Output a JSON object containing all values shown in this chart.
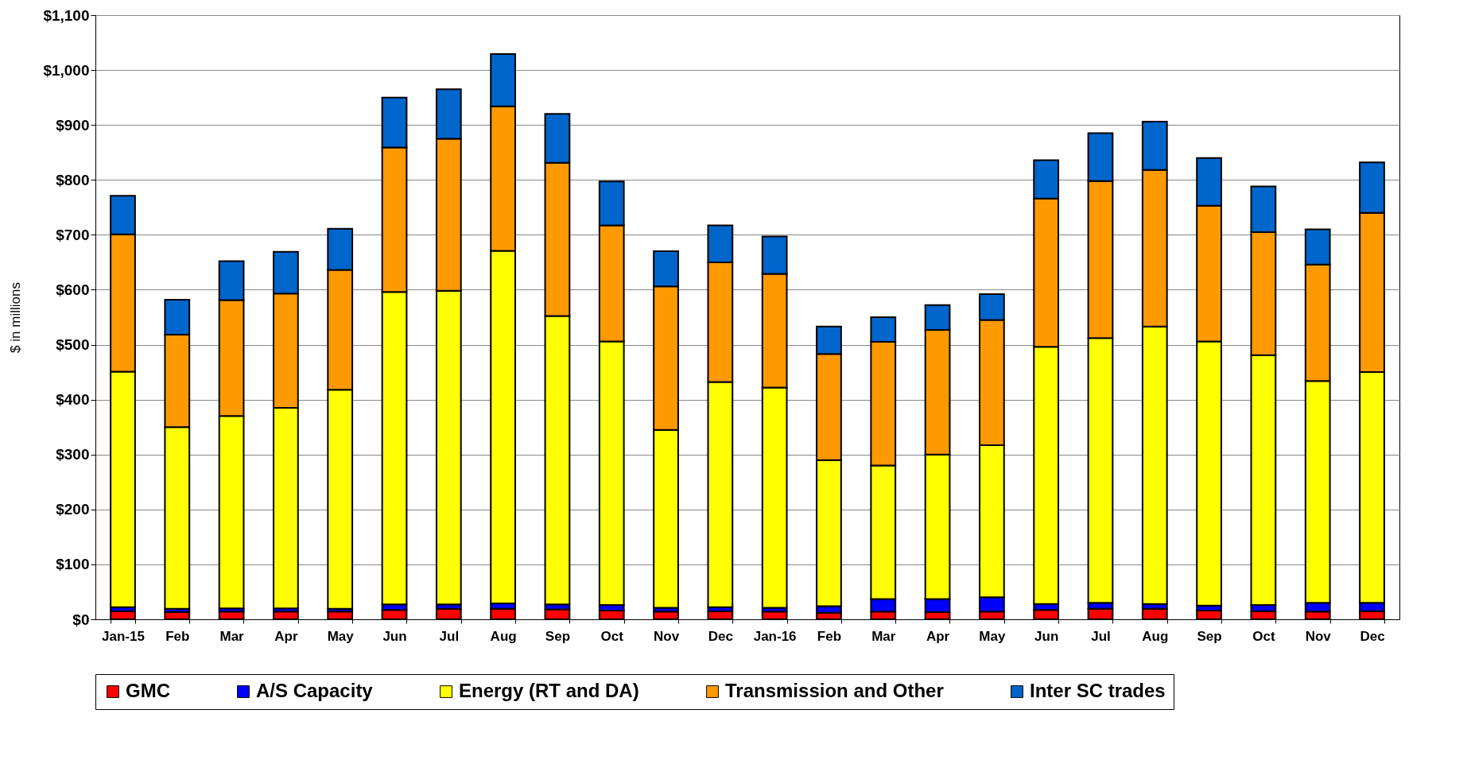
{
  "chart_data": {
    "type": "bar",
    "stacked": true,
    "ylabel": "$ in millions",
    "legend": "bottom",
    "grid": "y",
    "categories": [
      "Jan-15",
      "Feb",
      "Mar",
      "Apr",
      "May",
      "Jun",
      "Jul",
      "Aug",
      "Sep",
      "Oct",
      "Nov",
      "Dec",
      "Jan-16",
      "Feb",
      "Mar",
      "Apr",
      "May",
      "Jun",
      "Jul",
      "Aug",
      "Sep",
      "Oct",
      "Nov",
      "Dec"
    ],
    "ylim": [
      0,
      1100
    ],
    "yticks": [
      {
        "value": 0,
        "label": "$0"
      },
      {
        "value": 100,
        "label": "$100"
      },
      {
        "value": 200,
        "label": "$200"
      },
      {
        "value": 300,
        "label": "$300"
      },
      {
        "value": 400,
        "label": "$400"
      },
      {
        "value": 500,
        "label": "$500"
      },
      {
        "value": 600,
        "label": "$600"
      },
      {
        "value": 700,
        "label": "$700"
      },
      {
        "value": 800,
        "label": "$800"
      },
      {
        "value": 900,
        "label": "$900"
      },
      {
        "value": 1000,
        "label": "$1,000"
      },
      {
        "value": 1100,
        "label": "$1,100"
      }
    ],
    "series": [
      {
        "name": "GMC",
        "color": "#ff0000",
        "values": [
          15,
          13,
          14,
          14,
          14,
          17,
          19,
          19,
          18,
          16,
          14,
          15,
          14,
          12,
          14,
          13,
          14,
          17,
          19,
          19,
          16,
          15,
          14,
          15
        ]
      },
      {
        "name": "A/S Capacity",
        "color": "#0000ff",
        "values": [
          7,
          6,
          6,
          6,
          5,
          10,
          8,
          10,
          9,
          10,
          7,
          7,
          7,
          12,
          23,
          24,
          26,
          11,
          11,
          9,
          9,
          11,
          16,
          15
        ]
      },
      {
        "name": "Energy (RT and DA)",
        "color": "#ffff00",
        "values": [
          429,
          331,
          350,
          365,
          399,
          569,
          571,
          642,
          525,
          480,
          324,
          410,
          401,
          266,
          243,
          263,
          277,
          468,
          482,
          505,
          481,
          455,
          404,
          420
        ]
      },
      {
        "name": "Transmission and Other",
        "color": "#ff9900",
        "values": [
          250,
          168,
          211,
          208,
          218,
          263,
          277,
          263,
          279,
          211,
          261,
          218,
          207,
          193,
          225,
          227,
          228,
          270,
          286,
          285,
          247,
          224,
          212,
          290
        ]
      },
      {
        "name": "Inter SC trades",
        "color": "#0066cc",
        "values": [
          70,
          64,
          71,
          76,
          75,
          91,
          90,
          95,
          89,
          80,
          64,
          67,
          68,
          50,
          45,
          45,
          47,
          70,
          87,
          88,
          87,
          83,
          64,
          92
        ]
      }
    ]
  }
}
